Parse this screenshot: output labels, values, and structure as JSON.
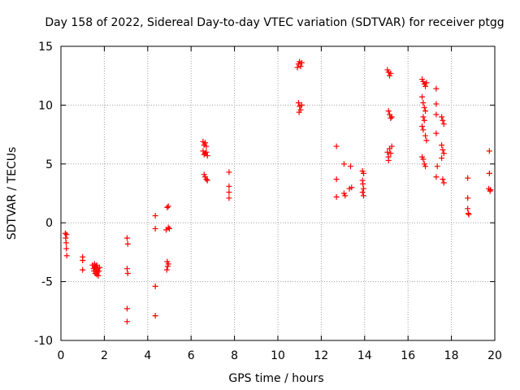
{
  "colors": {
    "series": "#ff0000",
    "grid": "#a0a0a0",
    "axis": "#000000"
  },
  "chart_data": {
    "type": "scatter",
    "title": "Day 158 of 2022, Sidereal Day-to-day VTEC variation (SDTVAR) for receiver ptgg",
    "xlabel": "GPS time / hours",
    "ylabel": "SDTVAR / TECUs",
    "xlim": [
      0,
      20
    ],
    "ylim": [
      -10,
      15
    ],
    "xticks": [
      0,
      2,
      4,
      6,
      8,
      10,
      12,
      14,
      16,
      18,
      20
    ],
    "yticks": [
      -10,
      -5,
      0,
      5,
      10,
      15
    ],
    "grid": true,
    "marker": "plus",
    "series": [
      {
        "name": "SDTVAR",
        "points": [
          [
            0.2,
            -0.9
          ],
          [
            0.22,
            -1.3
          ],
          [
            0.24,
            -1.7
          ],
          [
            0.25,
            -2.2
          ],
          [
            0.27,
            -2.8
          ],
          [
            0.26,
            -1.0
          ],
          [
            1.0,
            -2.9
          ],
          [
            1.0,
            -3.2
          ],
          [
            1.0,
            -4.0
          ],
          [
            1.45,
            -3.6
          ],
          [
            1.5,
            -3.9
          ],
          [
            1.52,
            -4.1
          ],
          [
            1.55,
            -3.8
          ],
          [
            1.58,
            -4.3
          ],
          [
            1.6,
            -3.7
          ],
          [
            1.62,
            -4.0
          ],
          [
            1.65,
            -4.4
          ],
          [
            1.68,
            -4.2
          ],
          [
            1.7,
            -3.9
          ],
          [
            1.72,
            -4.5
          ],
          [
            1.75,
            -4.1
          ],
          [
            1.78,
            -3.8
          ],
          [
            1.55,
            -3.5
          ],
          [
            1.65,
            -3.6
          ],
          [
            3.05,
            -1.3
          ],
          [
            3.08,
            -1.8
          ],
          [
            3.05,
            -3.9
          ],
          [
            3.08,
            -4.3
          ],
          [
            3.05,
            -7.3
          ],
          [
            3.05,
            -8.4
          ],
          [
            4.35,
            0.6
          ],
          [
            4.35,
            -0.5
          ],
          [
            4.35,
            -5.4
          ],
          [
            4.35,
            -7.9
          ],
          [
            4.9,
            1.3
          ],
          [
            4.95,
            1.4
          ],
          [
            4.85,
            -0.6
          ],
          [
            4.95,
            -0.4
          ],
          [
            5.0,
            -0.5
          ],
          [
            4.9,
            -3.3
          ],
          [
            4.92,
            -3.7
          ],
          [
            4.88,
            -4.0
          ],
          [
            4.95,
            -3.5
          ],
          [
            6.55,
            6.9
          ],
          [
            6.6,
            6.6
          ],
          [
            6.65,
            6.8
          ],
          [
            6.7,
            6.5
          ],
          [
            6.55,
            6.1
          ],
          [
            6.6,
            5.8
          ],
          [
            6.65,
            5.9
          ],
          [
            6.7,
            6.0
          ],
          [
            6.75,
            5.7
          ],
          [
            6.6,
            4.1
          ],
          [
            6.65,
            3.9
          ],
          [
            6.7,
            3.7
          ],
          [
            6.75,
            3.6
          ],
          [
            7.75,
            4.3
          ],
          [
            7.75,
            3.1
          ],
          [
            7.75,
            2.6
          ],
          [
            7.75,
            2.1
          ],
          [
            10.9,
            13.2
          ],
          [
            10.95,
            13.5
          ],
          [
            11.0,
            13.7
          ],
          [
            11.05,
            13.3
          ],
          [
            11.1,
            13.6
          ],
          [
            10.95,
            10.2
          ],
          [
            11.0,
            9.9
          ],
          [
            11.05,
            9.6
          ],
          [
            11.1,
            10.0
          ],
          [
            10.98,
            9.4
          ],
          [
            12.7,
            6.5
          ],
          [
            12.7,
            3.7
          ],
          [
            12.7,
            2.2
          ],
          [
            13.05,
            5.0
          ],
          [
            13.05,
            2.5
          ],
          [
            13.1,
            2.3
          ],
          [
            13.35,
            4.8
          ],
          [
            13.3,
            2.9
          ],
          [
            13.4,
            3.0
          ],
          [
            13.9,
            4.4
          ],
          [
            13.95,
            4.2
          ],
          [
            13.9,
            3.6
          ],
          [
            13.92,
            3.3
          ],
          [
            13.95,
            2.9
          ],
          [
            13.9,
            2.6
          ],
          [
            13.95,
            2.3
          ],
          [
            15.05,
            13.0
          ],
          [
            15.1,
            12.8
          ],
          [
            15.15,
            12.5
          ],
          [
            15.2,
            12.7
          ],
          [
            15.1,
            9.5
          ],
          [
            15.15,
            9.2
          ],
          [
            15.2,
            8.9
          ],
          [
            15.25,
            9.0
          ],
          [
            15.05,
            6.0
          ],
          [
            15.1,
            5.6
          ],
          [
            15.15,
            6.3
          ],
          [
            15.2,
            5.9
          ],
          [
            15.25,
            6.5
          ],
          [
            15.1,
            5.3
          ],
          [
            16.65,
            12.2
          ],
          [
            16.7,
            12.0
          ],
          [
            16.75,
            11.8
          ],
          [
            16.8,
            11.6
          ],
          [
            16.85,
            11.9
          ],
          [
            16.65,
            10.7
          ],
          [
            16.7,
            10.2
          ],
          [
            16.75,
            9.8
          ],
          [
            16.8,
            9.5
          ],
          [
            16.7,
            9.0
          ],
          [
            16.75,
            8.7
          ],
          [
            16.65,
            8.2
          ],
          [
            16.7,
            7.9
          ],
          [
            16.8,
            7.4
          ],
          [
            16.85,
            7.0
          ],
          [
            16.65,
            5.6
          ],
          [
            16.7,
            5.4
          ],
          [
            16.75,
            5.0
          ],
          [
            16.8,
            4.8
          ],
          [
            17.3,
            11.4
          ],
          [
            17.3,
            10.1
          ],
          [
            17.3,
            9.2
          ],
          [
            17.3,
            7.6
          ],
          [
            17.35,
            4.8
          ],
          [
            17.3,
            3.9
          ],
          [
            17.55,
            9.0
          ],
          [
            17.6,
            8.7
          ],
          [
            17.65,
            8.4
          ],
          [
            17.55,
            6.6
          ],
          [
            17.6,
            6.2
          ],
          [
            17.65,
            5.9
          ],
          [
            17.55,
            5.5
          ],
          [
            17.6,
            3.7
          ],
          [
            17.65,
            3.4
          ],
          [
            18.75,
            3.8
          ],
          [
            18.75,
            2.1
          ],
          [
            18.75,
            1.2
          ],
          [
            18.78,
            0.8
          ],
          [
            18.8,
            0.7
          ],
          [
            19.75,
            6.1
          ],
          [
            19.75,
            4.2
          ],
          [
            19.72,
            2.9
          ],
          [
            19.78,
            2.7
          ],
          [
            19.8,
            2.8
          ]
        ]
      }
    ]
  }
}
